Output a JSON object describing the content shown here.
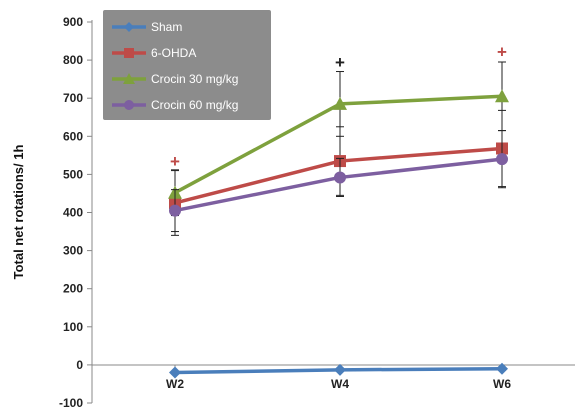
{
  "chart_data": {
    "type": "line",
    "title": "",
    "xlabel": "",
    "ylabel": "Total net rotations/ 1h",
    "ylim": [
      -100,
      900
    ],
    "yticks": [
      -100,
      0,
      100,
      200,
      300,
      400,
      500,
      600,
      700,
      800,
      900
    ],
    "categories": [
      "W2",
      "W4",
      "W6"
    ],
    "grid": false,
    "legend_position": "top-left",
    "series": [
      {
        "name": "Sham",
        "color": "#4a7ebb",
        "marker": "diamond",
        "values": [
          -20,
          -13,
          -10
        ],
        "error": [
          4,
          4,
          4
        ]
      },
      {
        "name": "6-OHDA",
        "color": "#be4b48",
        "marker": "square",
        "values": [
          425,
          535,
          568
        ],
        "error": [
          85,
          90,
          100
        ]
      },
      {
        "name": "Crocin 30 mg/kg",
        "color": "#7ea13d",
        "marker": "triangle",
        "values": [
          452,
          685,
          705
        ],
        "error": [
          60,
          85,
          90
        ]
      },
      {
        "name": "Crocin 60 mg/kg",
        "color": "#7d5fa0",
        "marker": "circle",
        "values": [
          405,
          492,
          540
        ],
        "error": [
          55,
          50,
          75
        ]
      }
    ],
    "annotations": [
      {
        "text": "+",
        "category": "W2",
        "value": 535,
        "color": "#be4b48"
      },
      {
        "text": "+",
        "category": "W4",
        "value": 795,
        "color": "#222222"
      },
      {
        "text": "+",
        "category": "W6",
        "value": 823,
        "color": "#be4b48"
      }
    ]
  }
}
